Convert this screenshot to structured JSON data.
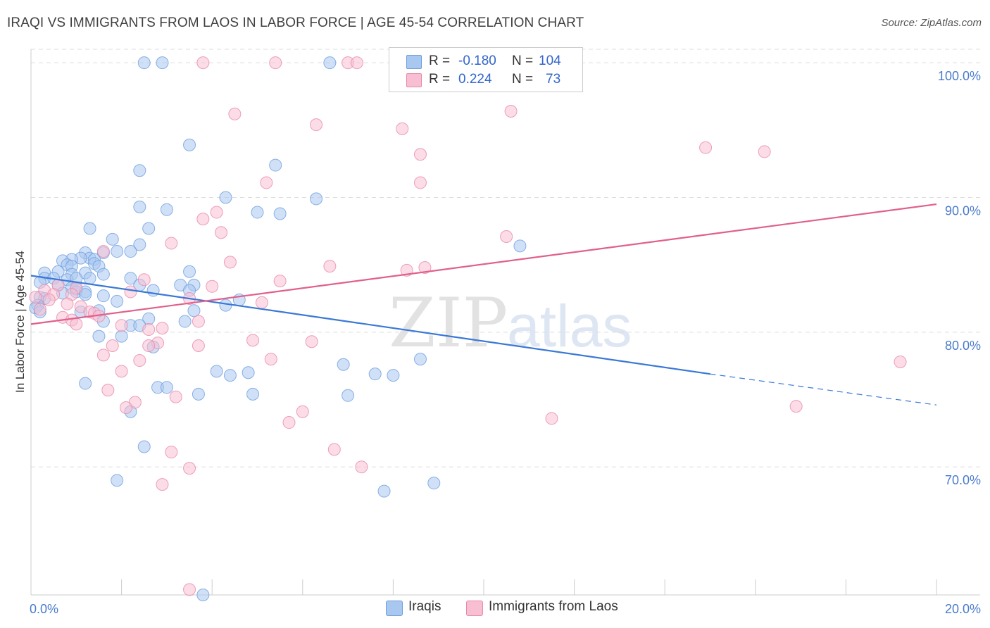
{
  "title": "IRAQI VS IMMIGRANTS FROM LAOS IN LABOR FORCE | AGE 45-54 CORRELATION CHART",
  "source": "Source: ZipAtlas.com",
  "watermark": {
    "zip": "ZIP",
    "atlas": "atlas"
  },
  "legend": {
    "rows": [
      {
        "r_label": "R =",
        "r_value": "-0.180",
        "n_label": "N =",
        "n_value": "104",
        "color": "#a9c8f0",
        "border": "#6f9ee0"
      },
      {
        "r_label": "R =",
        "r_value": "0.224",
        "n_label": "N =",
        "n_value": "73",
        "color": "#f8bfd3",
        "border": "#e889aa"
      }
    ]
  },
  "bottom_legend": [
    {
      "label": "Iraqis",
      "color": "#a9c8f0",
      "border": "#6f9ee0"
    },
    {
      "label": "Immigrants from Laos",
      "color": "#f8bfd3",
      "border": "#e889aa"
    }
  ],
  "chart_data": {
    "type": "scatter",
    "title": "IRAQI VS IMMIGRANTS FROM LAOS IN LABOR FORCE | AGE 45-54 CORRELATION CHART",
    "xlabel": "",
    "ylabel": "In Labor Force | Age 45-54",
    "xlim": [
      0,
      20
    ],
    "ylim": [
      60.5,
      101
    ],
    "x_tick_labels": [
      {
        "value": 0,
        "label": "0.0%"
      },
      {
        "value": 20,
        "label": "20.0%"
      }
    ],
    "y_tick_labels": [
      {
        "value": 100,
        "label": "100.0%"
      },
      {
        "value": 90,
        "label": "90.0%"
      },
      {
        "value": 80,
        "label": "80.0%"
      },
      {
        "value": 70,
        "label": "70.0%"
      }
    ],
    "grid": "horizontal dashed",
    "legend_position": "top-center",
    "series": [
      {
        "name": "Iraqis",
        "color": "#6f9ee0",
        "fill": "#a9c8f0",
        "trend": {
          "x": [
            0.0,
            15.0
          ],
          "y": [
            84.2,
            76.9
          ],
          "dashed_to": [
            20.0,
            74.6
          ],
          "color": "#3a78d6"
        },
        "points": [
          [
            2.5,
            100.0
          ],
          [
            2.9,
            100.0
          ],
          [
            6.6,
            100.0
          ],
          [
            3.5,
            93.9
          ],
          [
            5.4,
            92.4
          ],
          [
            2.4,
            92.0
          ],
          [
            4.3,
            90.0
          ],
          [
            6.3,
            89.9
          ],
          [
            2.4,
            89.3
          ],
          [
            3.0,
            89.1
          ],
          [
            5.0,
            88.9
          ],
          [
            5.5,
            88.8
          ],
          [
            1.3,
            87.7
          ],
          [
            2.6,
            87.7
          ],
          [
            1.8,
            86.9
          ],
          [
            2.4,
            86.5
          ],
          [
            10.8,
            86.4
          ],
          [
            1.9,
            86.0
          ],
          [
            2.2,
            86.0
          ],
          [
            1.6,
            85.9
          ],
          [
            1.2,
            85.9
          ],
          [
            1.3,
            85.5
          ],
          [
            1.4,
            85.4
          ],
          [
            1.1,
            85.5
          ],
          [
            0.9,
            85.4
          ],
          [
            0.7,
            85.3
          ],
          [
            1.4,
            85.1
          ],
          [
            0.8,
            85.0
          ],
          [
            0.9,
            84.9
          ],
          [
            1.5,
            84.9
          ],
          [
            0.3,
            84.4
          ],
          [
            0.6,
            84.5
          ],
          [
            0.9,
            84.3
          ],
          [
            1.2,
            84.4
          ],
          [
            1.6,
            84.3
          ],
          [
            0.3,
            84.0
          ],
          [
            0.5,
            84.0
          ],
          [
            0.8,
            83.9
          ],
          [
            1.0,
            84.0
          ],
          [
            1.3,
            84.0
          ],
          [
            2.2,
            84.0
          ],
          [
            3.5,
            84.5
          ],
          [
            0.2,
            83.7
          ],
          [
            0.6,
            83.5
          ],
          [
            0.9,
            83.3
          ],
          [
            1.0,
            83.2
          ],
          [
            2.4,
            83.5
          ],
          [
            3.3,
            83.5
          ],
          [
            3.6,
            83.5
          ],
          [
            1.0,
            83.0
          ],
          [
            1.2,
            83.0
          ],
          [
            2.7,
            83.1
          ],
          [
            3.5,
            83.1
          ],
          [
            0.7,
            82.9
          ],
          [
            1.6,
            82.7
          ],
          [
            1.2,
            82.8
          ],
          [
            0.2,
            82.6
          ],
          [
            0.3,
            82.5
          ],
          [
            4.6,
            82.4
          ],
          [
            1.9,
            82.3
          ],
          [
            4.3,
            82.0
          ],
          [
            0.15,
            82.0
          ],
          [
            0.1,
            81.8
          ],
          [
            0.2,
            81.5
          ],
          [
            1.1,
            81.5
          ],
          [
            1.5,
            81.6
          ],
          [
            3.6,
            81.6
          ],
          [
            2.6,
            81.0
          ],
          [
            3.4,
            80.8
          ],
          [
            1.6,
            80.8
          ],
          [
            2.2,
            80.5
          ],
          [
            2.4,
            80.5
          ],
          [
            1.5,
            79.7
          ],
          [
            2.0,
            79.7
          ],
          [
            2.7,
            78.9
          ],
          [
            6.9,
            77.6
          ],
          [
            8.6,
            78.0
          ],
          [
            4.1,
            77.1
          ],
          [
            4.4,
            76.8
          ],
          [
            4.8,
            77.0
          ],
          [
            7.6,
            76.9
          ],
          [
            8.0,
            76.8
          ],
          [
            1.2,
            76.2
          ],
          [
            2.8,
            75.9
          ],
          [
            3.0,
            75.9
          ],
          [
            3.7,
            75.4
          ],
          [
            4.9,
            75.4
          ],
          [
            7.0,
            75.3
          ],
          [
            2.2,
            74.1
          ],
          [
            2.5,
            71.5
          ],
          [
            1.9,
            69.0
          ],
          [
            8.9,
            68.8
          ],
          [
            7.8,
            68.2
          ],
          [
            3.8,
            60.5
          ]
        ]
      },
      {
        "name": "Immigrants from Laos",
        "color": "#e889aa",
        "fill": "#f8bfd3",
        "trend": {
          "x": [
            0.0,
            20.0
          ],
          "y": [
            80.6,
            89.5
          ],
          "color": "#e0608c"
        },
        "points": [
          [
            3.8,
            100.0
          ],
          [
            5.4,
            100.0
          ],
          [
            7.0,
            100.0
          ],
          [
            7.2,
            100.0
          ],
          [
            4.5,
            96.2
          ],
          [
            10.6,
            96.4
          ],
          [
            6.3,
            95.4
          ],
          [
            8.2,
            95.1
          ],
          [
            14.9,
            93.7
          ],
          [
            16.2,
            93.4
          ],
          [
            8.6,
            93.2
          ],
          [
            5.2,
            91.1
          ],
          [
            8.6,
            91.1
          ],
          [
            4.1,
            88.9
          ],
          [
            3.8,
            88.4
          ],
          [
            4.2,
            87.4
          ],
          [
            10.5,
            87.1
          ],
          [
            3.1,
            86.6
          ],
          [
            1.6,
            86.0
          ],
          [
            4.4,
            85.2
          ],
          [
            6.6,
            84.9
          ],
          [
            8.7,
            84.8
          ],
          [
            8.3,
            84.6
          ],
          [
            2.5,
            83.9
          ],
          [
            5.5,
            83.8
          ],
          [
            4.0,
            83.4
          ],
          [
            1.0,
            83.3
          ],
          [
            0.6,
            83.5
          ],
          [
            2.2,
            83.0
          ],
          [
            0.3,
            83.1
          ],
          [
            0.9,
            82.8
          ],
          [
            0.5,
            82.8
          ],
          [
            3.5,
            82.5
          ],
          [
            0.4,
            82.4
          ],
          [
            5.1,
            82.2
          ],
          [
            0.1,
            82.6
          ],
          [
            0.8,
            82.1
          ],
          [
            1.1,
            81.9
          ],
          [
            0.2,
            81.7
          ],
          [
            1.3,
            81.5
          ],
          [
            0.7,
            81.1
          ],
          [
            0.9,
            80.9
          ],
          [
            1.4,
            81.4
          ],
          [
            1.0,
            80.6
          ],
          [
            1.5,
            81.2
          ],
          [
            3.7,
            80.8
          ],
          [
            2.0,
            80.5
          ],
          [
            2.9,
            80.3
          ],
          [
            2.6,
            80.2
          ],
          [
            4.9,
            79.4
          ],
          [
            6.2,
            79.3
          ],
          [
            2.8,
            79.2
          ],
          [
            3.7,
            79.0
          ],
          [
            2.6,
            79.0
          ],
          [
            1.8,
            79.0
          ],
          [
            1.6,
            78.3
          ],
          [
            5.3,
            78.0
          ],
          [
            2.4,
            77.9
          ],
          [
            19.2,
            77.8
          ],
          [
            2.0,
            77.1
          ],
          [
            1.7,
            75.7
          ],
          [
            3.2,
            75.2
          ],
          [
            2.3,
            74.8
          ],
          [
            2.1,
            74.4
          ],
          [
            16.9,
            74.5
          ],
          [
            6.0,
            74.1
          ],
          [
            5.7,
            73.3
          ],
          [
            11.5,
            73.6
          ],
          [
            3.1,
            71.1
          ],
          [
            6.7,
            71.3
          ],
          [
            7.3,
            70.0
          ],
          [
            3.5,
            69.9
          ],
          [
            2.9,
            68.7
          ],
          [
            3.5,
            60.9
          ]
        ]
      }
    ]
  }
}
